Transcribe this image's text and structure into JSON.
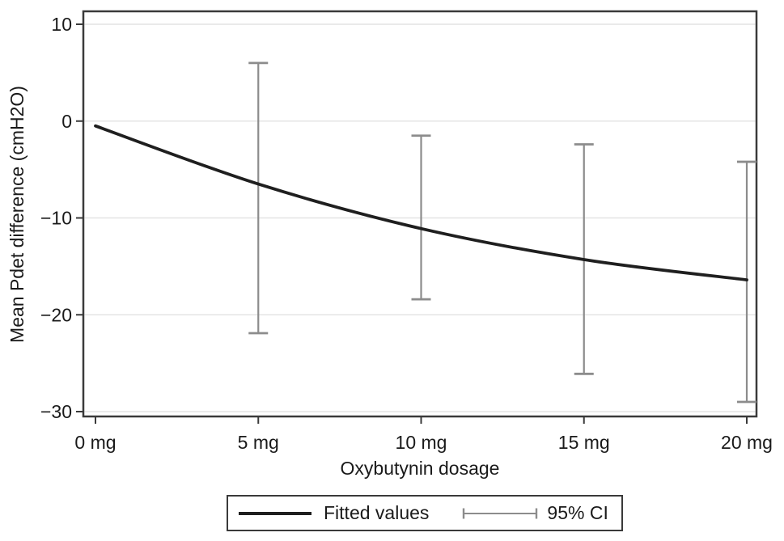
{
  "chart_data": {
    "type": "line",
    "title": "",
    "xlabel": "Oxybutynin dosage",
    "ylabel": "Mean Pdet difference (cmH2O)",
    "xlim": [
      0,
      20
    ],
    "ylim": [
      -30,
      10
    ],
    "grid": true,
    "legend_position": "bottom",
    "x_ticks": [
      {
        "value": 0,
        "label": "0 mg"
      },
      {
        "value": 5,
        "label": "5 mg"
      },
      {
        "value": 10,
        "label": "10 mg"
      },
      {
        "value": 15,
        "label": "15 mg"
      },
      {
        "value": 20,
        "label": "20 mg"
      }
    ],
    "y_ticks": [
      {
        "value": 10,
        "label": "10"
      },
      {
        "value": 0,
        "label": "0"
      },
      {
        "value": -10,
        "label": "−10"
      },
      {
        "value": -20,
        "label": "−20"
      },
      {
        "value": -30,
        "label": "−30"
      }
    ],
    "series": [
      {
        "name": "Fitted values",
        "type": "line",
        "color": "#1f1f1f",
        "x": [
          0,
          5,
          10,
          15,
          20
        ],
        "y": [
          -0.5,
          -6.5,
          -11.1,
          -14.3,
          -16.4
        ]
      },
      {
        "name": "95% CI",
        "type": "errorbar",
        "color": "#8c8c8c",
        "x": [
          5,
          10,
          15,
          20
        ],
        "upper": [
          6.0,
          -1.5,
          -2.4,
          -4.2
        ],
        "lower": [
          -21.9,
          -18.4,
          -26.1,
          -29.0
        ]
      }
    ],
    "colors": {
      "gridline": "#e4e4e4",
      "border": "#3a3a3a",
      "text": "#1a1a1a"
    }
  }
}
